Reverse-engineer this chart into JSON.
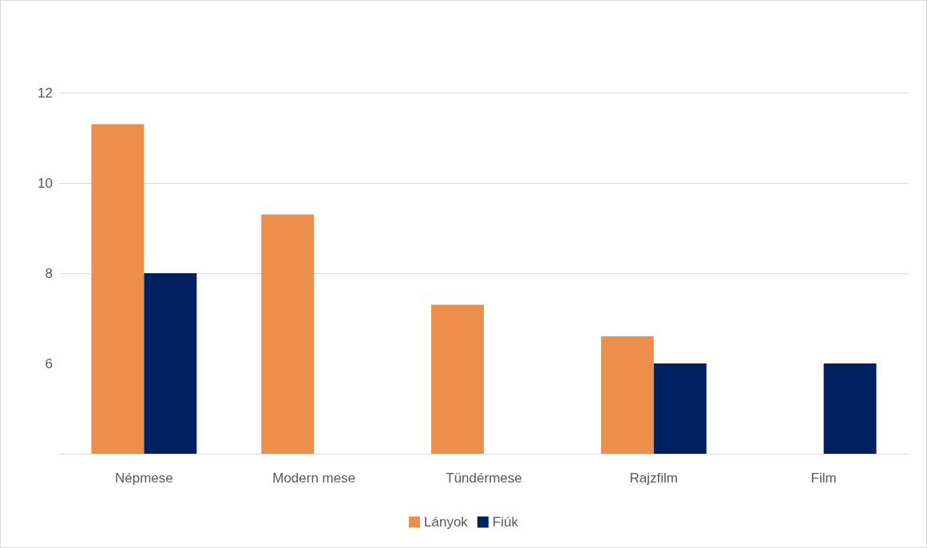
{
  "chart_data": {
    "type": "bar",
    "categories": [
      "Népmese",
      "Modern mese",
      "Tündérmese",
      "Rajzfilm",
      "Film"
    ],
    "series": [
      {
        "name": "Lányok",
        "color": "#ed8f4c",
        "values": [
          11.3,
          9.3,
          7.3,
          6.6,
          null
        ]
      },
      {
        "name": "Fiúk",
        "color": "#002060",
        "values": [
          8,
          null,
          null,
          6,
          6
        ]
      }
    ],
    "ylim": [
      4,
      12
    ],
    "yticks": [
      6,
      8,
      10,
      12
    ],
    "grid": "y",
    "legend": "bottom"
  }
}
